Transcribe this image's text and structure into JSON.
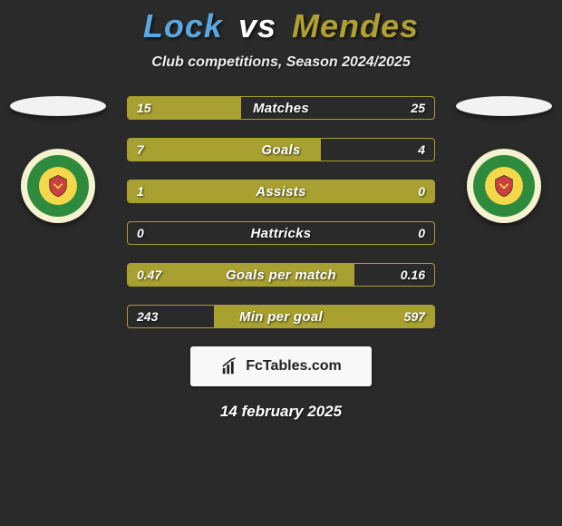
{
  "header": {
    "player1": "Lock",
    "vs": "vs",
    "player2": "Mendes",
    "player1_color": "#5aa8e0",
    "player2_color": "#b0a030",
    "subtitle": "Club competitions, Season 2024/2025"
  },
  "comparison": {
    "type": "horizontal-diverging-bar",
    "bar_color": "#a8a030",
    "background_color": "#2a2a2a",
    "border_color": "#a8a030",
    "rows": [
      {
        "label": "Matches",
        "left_val": "15",
        "right_val": "25",
        "left_pct": 37,
        "right_pct": 0
      },
      {
        "label": "Goals",
        "left_val": "7",
        "right_val": "4",
        "left_pct": 63,
        "right_pct": 0
      },
      {
        "label": "Assists",
        "left_val": "1",
        "right_val": "0",
        "left_pct": 100,
        "right_pct": 0
      },
      {
        "label": "Hattricks",
        "left_val": "0",
        "right_val": "0",
        "left_pct": 0,
        "right_pct": 0
      },
      {
        "label": "Goals per match",
        "left_val": "0.47",
        "right_val": "0.16",
        "left_pct": 74,
        "right_pct": 0
      },
      {
        "label": "Min per goal",
        "left_val": "243",
        "right_val": "597",
        "left_pct": 0,
        "right_pct": 72
      }
    ]
  },
  "crest": {
    "outer_color": "#f5f2d0",
    "ring_color": "#2e8b3e",
    "inner_color": "#f5d84a"
  },
  "brand": {
    "label": "FcTables.com"
  },
  "footer": {
    "date": "14 february 2025"
  }
}
